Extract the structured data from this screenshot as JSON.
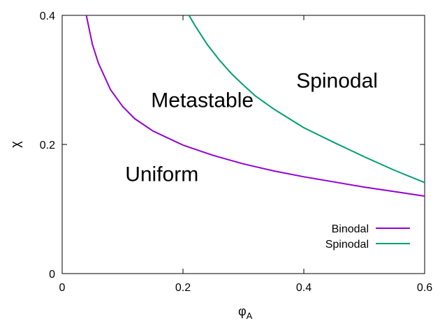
{
  "chart_data": {
    "type": "line",
    "xlabel_main": "φ",
    "xlabel_sub": "A",
    "ylabel": "χ",
    "xlim": [
      0,
      0.6
    ],
    "ylim": [
      0,
      0.4
    ],
    "x_ticks": [
      0,
      0.2,
      0.4,
      0.6
    ],
    "x_tick_labels": [
      "0",
      "0.2",
      "0.4",
      "0.6"
    ],
    "y_ticks": [
      0,
      0.2,
      0.4
    ],
    "y_tick_labels": [
      "0",
      "0.2",
      "0.4"
    ],
    "grid": false,
    "legend_position": "bottom-right",
    "series": [
      {
        "name": "Binodal",
        "color": "#9400d3",
        "x": [
          0.04,
          0.05,
          0.06,
          0.08,
          0.1,
          0.12,
          0.15,
          0.2,
          0.25,
          0.3,
          0.35,
          0.4,
          0.45,
          0.5,
          0.55,
          0.6
        ],
        "y": [
          0.4,
          0.355,
          0.326,
          0.285,
          0.259,
          0.24,
          0.221,
          0.199,
          0.183,
          0.17,
          0.159,
          0.15,
          0.142,
          0.134,
          0.127,
          0.12
        ]
      },
      {
        "name": "Spinodal",
        "color": "#009e73",
        "x": [
          0.21,
          0.22,
          0.24,
          0.26,
          0.28,
          0.3,
          0.32,
          0.35,
          0.4,
          0.45,
          0.5,
          0.55,
          0.6
        ],
        "y": [
          0.4,
          0.384,
          0.355,
          0.331,
          0.31,
          0.292,
          0.275,
          0.255,
          0.226,
          0.203,
          0.181,
          0.16,
          0.141
        ]
      }
    ],
    "annotations": [
      {
        "text": "Spinodal",
        "x": 0.455,
        "y": 0.3
      },
      {
        "text": "Metastable",
        "x": 0.232,
        "y": 0.27
      },
      {
        "text": "Uniform",
        "x": 0.165,
        "y": 0.155
      }
    ]
  }
}
